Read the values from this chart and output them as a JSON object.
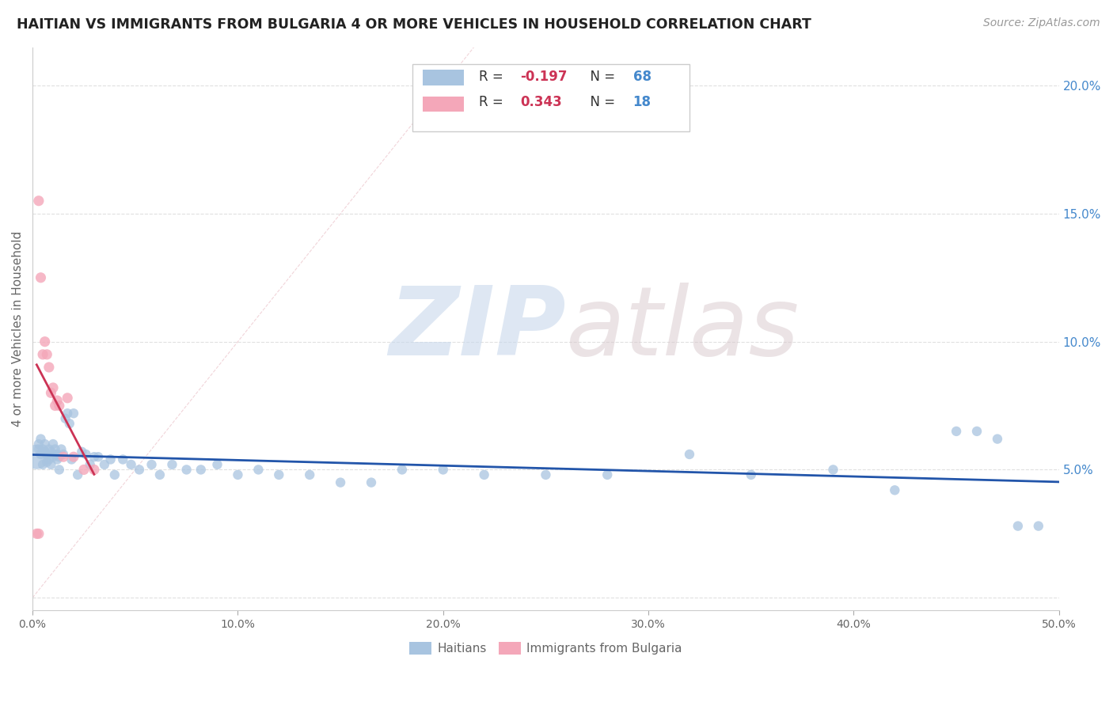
{
  "title": "HAITIAN VS IMMIGRANTS FROM BULGARIA 4 OR MORE VEHICLES IN HOUSEHOLD CORRELATION CHART",
  "source": "Source: ZipAtlas.com",
  "ylabel": "4 or more Vehicles in Household",
  "right_yticks": [
    "5.0%",
    "10.0%",
    "15.0%",
    "20.0%"
  ],
  "right_ytick_vals": [
    0.05,
    0.1,
    0.15,
    0.2
  ],
  "xmin": 0.0,
  "xmax": 0.5,
  "ymin": -0.005,
  "ymax": 0.215,
  "r_haitian": -0.197,
  "n_haitian": 68,
  "r_bulgaria": 0.343,
  "n_bulgaria": 18,
  "haitian_color": "#a8c4e0",
  "bulgaria_color": "#f4a7b9",
  "haitian_line_color": "#2255aa",
  "bulgaria_line_color": "#cc3355",
  "diagonal_color": "#e8b8c0",
  "grid_color": "#e0e0e0",
  "background_color": "#ffffff",
  "haitian_x": [
    0.002,
    0.003,
    0.003,
    0.004,
    0.004,
    0.005,
    0.005,
    0.006,
    0.006,
    0.007,
    0.007,
    0.008,
    0.008,
    0.009,
    0.009,
    0.01,
    0.01,
    0.011,
    0.011,
    0.012,
    0.012,
    0.013,
    0.013,
    0.014,
    0.015,
    0.016,
    0.017,
    0.018,
    0.019,
    0.02,
    0.022,
    0.024,
    0.026,
    0.028,
    0.03,
    0.032,
    0.035,
    0.038,
    0.04,
    0.044,
    0.048,
    0.052,
    0.058,
    0.062,
    0.068,
    0.075,
    0.082,
    0.09,
    0.1,
    0.11,
    0.12,
    0.135,
    0.15,
    0.165,
    0.18,
    0.2,
    0.22,
    0.25,
    0.28,
    0.32,
    0.35,
    0.39,
    0.42,
    0.45,
    0.46,
    0.47,
    0.48,
    0.49
  ],
  "haitian_y": [
    0.055,
    0.06,
    0.058,
    0.062,
    0.056,
    0.058,
    0.052,
    0.057,
    0.06,
    0.053,
    0.056,
    0.058,
    0.054,
    0.052,
    0.057,
    0.055,
    0.06,
    0.056,
    0.058,
    0.054,
    0.056,
    0.05,
    0.055,
    0.058,
    0.056,
    0.07,
    0.072,
    0.068,
    0.054,
    0.072,
    0.048,
    0.057,
    0.056,
    0.052,
    0.055,
    0.055,
    0.052,
    0.054,
    0.048,
    0.054,
    0.052,
    0.05,
    0.052,
    0.048,
    0.052,
    0.05,
    0.05,
    0.052,
    0.048,
    0.05,
    0.048,
    0.048,
    0.045,
    0.045,
    0.05,
    0.05,
    0.048,
    0.048,
    0.048,
    0.056,
    0.048,
    0.05,
    0.042,
    0.065,
    0.065,
    0.062,
    0.028,
    0.028
  ],
  "haitian_sizes": [
    500,
    80,
    80,
    80,
    80,
    80,
    80,
    80,
    80,
    80,
    80,
    80,
    80,
    80,
    80,
    80,
    80,
    80,
    80,
    80,
    80,
    80,
    80,
    80,
    80,
    80,
    80,
    80,
    80,
    80,
    80,
    80,
    80,
    80,
    80,
    80,
    80,
    80,
    80,
    80,
    80,
    80,
    80,
    80,
    80,
    80,
    80,
    80,
    80,
    80,
    80,
    80,
    80,
    80,
    80,
    80,
    80,
    80,
    80,
    80,
    80,
    80,
    80,
    80,
    80,
    80,
    80,
    80
  ],
  "bulgaria_x": [
    0.002,
    0.003,
    0.003,
    0.004,
    0.005,
    0.006,
    0.007,
    0.008,
    0.009,
    0.01,
    0.011,
    0.012,
    0.013,
    0.015,
    0.017,
    0.02,
    0.025,
    0.03
  ],
  "bulgaria_y": [
    0.025,
    0.025,
    0.155,
    0.125,
    0.095,
    0.1,
    0.095,
    0.09,
    0.08,
    0.082,
    0.075,
    0.077,
    0.075,
    0.055,
    0.078,
    0.055,
    0.05,
    0.05
  ],
  "watermark_zip": "ZIP",
  "watermark_atlas": "atlas",
  "watermark_color": "#dce6f0"
}
